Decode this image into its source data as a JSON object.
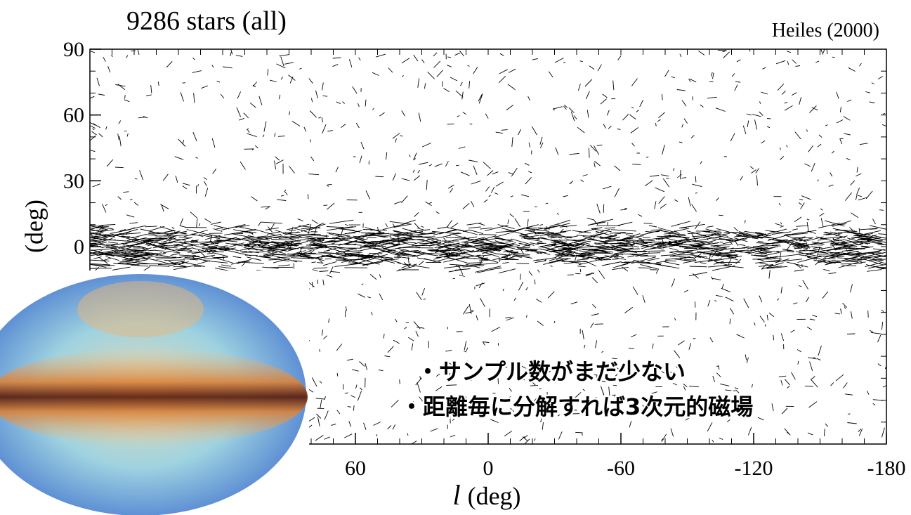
{
  "chart_data": {
    "type": "vector-map",
    "title": "9286  stars  (all)",
    "credit": "Heiles  (2000)",
    "x_label": {
      "symbol": "l",
      "unit": "(deg)"
    },
    "y_label": "(deg)",
    "xlim": [
      180,
      -180
    ],
    "xticks": [
      60,
      0,
      -60,
      -120,
      -180
    ],
    "ylim": [
      -90,
      90
    ],
    "yticks": [
      90,
      60,
      30,
      0
    ]
  },
  "notes": [
    "・サンプル数がまだ少ない",
    "・距離毎に分解すれば3次元的磁場"
  ]
}
